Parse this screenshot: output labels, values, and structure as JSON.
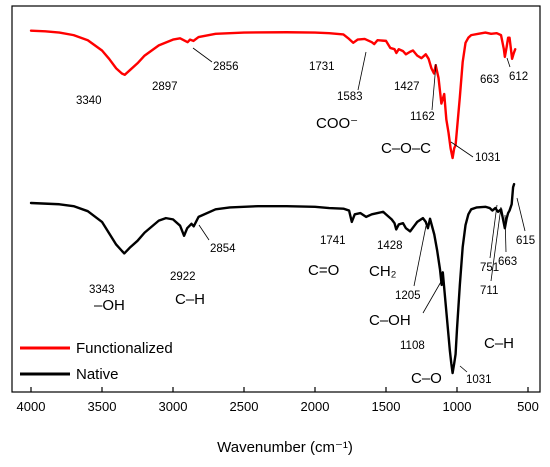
{
  "chart_data": {
    "type": "line",
    "xlabel": "Wavenumber (cm⁻¹)",
    "xlim": [
      4000,
      500
    ],
    "xticks": [
      4000,
      3500,
      3000,
      2500,
      2000,
      1500,
      1000,
      500
    ],
    "reversed_x": true,
    "yaxis_visible": false,
    "grid": false,
    "legend": "bottom-left",
    "series": [
      {
        "name": "Functionalized",
        "color": "#ff0000",
        "peaks": [
          3340,
          2897,
          2856,
          1731,
          1583,
          1427,
          1162,
          1031,
          663,
          612
        ]
      },
      {
        "name": "Native",
        "color": "#000000",
        "peaks": [
          3343,
          2922,
          2854,
          1741,
          1428,
          1205,
          1108,
          1031,
          751,
          711,
          663,
          615
        ]
      }
    ],
    "peak_labels": {
      "functionalized": [
        "3340",
        "2897",
        "2856",
        "1731",
        "1583",
        "1427",
        "1162",
        "1031",
        "663",
        "612"
      ],
      "native": [
        "3343",
        "2922",
        "2854",
        "1741",
        "1428",
        "1205",
        "1108",
        "1031",
        "751",
        "711",
        "663",
        "615"
      ]
    },
    "group_labels": {
      "coo": "COO⁻",
      "coc": "C–O–C",
      "oh": "–OH",
      "ch_native": "C–H",
      "co_double": "C=O",
      "ch2": "CH₂",
      "c_oh": "C–OH",
      "c_o": "C–O",
      "ch_fingerprint": "C–H"
    }
  }
}
